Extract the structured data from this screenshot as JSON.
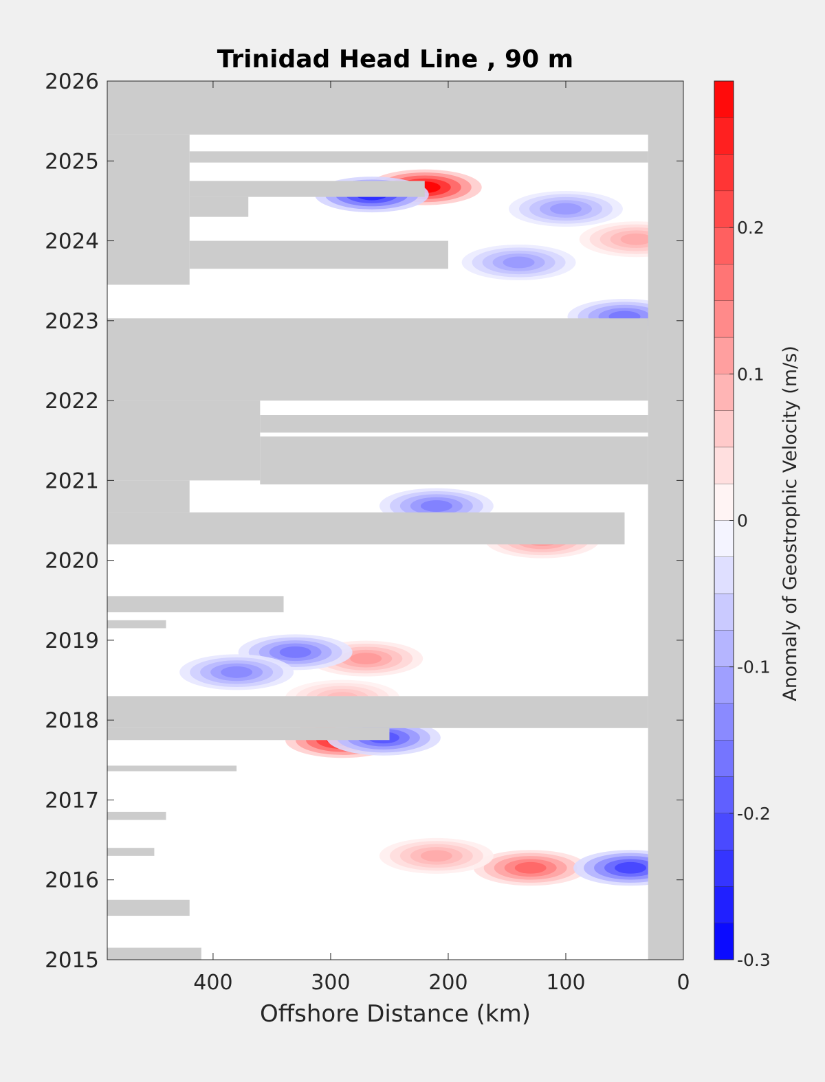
{
  "chart_data": {
    "type": "heatmap",
    "title": "Trinidad Head Line , 90 m",
    "xlabel": "Offshore Distance (km)",
    "ylabel": "",
    "xlim": [
      490,
      0
    ],
    "ylim": [
      2015,
      2026
    ],
    "x_reversed": true,
    "x_ticks": [
      400,
      300,
      200,
      100,
      0
    ],
    "y_ticks": [
      2015,
      2016,
      2017,
      2018,
      2019,
      2020,
      2021,
      2022,
      2023,
      2024,
      2025,
      2026
    ],
    "grid": false,
    "missing_color": "#cccccc",
    "colorbar": {
      "label": "Anomaly of Geostrophic Velocity (m/s)",
      "limits": [
        -0.3,
        0.3
      ],
      "levels": 24,
      "low_color": "#0000ff",
      "mid_color": "#ffffff",
      "high_color": "#ff0000",
      "ticks": [
        -0.3,
        -0.2,
        -0.1,
        0,
        0.1,
        0.2
      ],
      "tick_labels": [
        "-0.3",
        "-0.2",
        "-0.1",
        "0",
        "0.1",
        "0.2"
      ]
    },
    "missing_data": [
      {
        "x": [
          490,
          0
        ],
        "y": [
          2025.33,
          2026
        ]
      },
      {
        "x": [
          30,
          0
        ],
        "y": [
          2015,
          2026
        ]
      },
      {
        "x": [
          490,
          420
        ],
        "y": [
          2023.45,
          2025.33
        ]
      },
      {
        "x": [
          420,
          30
        ],
        "y": [
          2024.98,
          2025.12
        ]
      },
      {
        "x": [
          420,
          220
        ],
        "y": [
          2024.55,
          2024.75
        ]
      },
      {
        "x": [
          420,
          370
        ],
        "y": [
          2024.3,
          2024.55
        ]
      },
      {
        "x": [
          420,
          200
        ],
        "y": [
          2023.65,
          2024.0
        ]
      },
      {
        "x": [
          490,
          30
        ],
        "y": [
          2022.0,
          2023.03
        ]
      },
      {
        "x": [
          490,
          360
        ],
        "y": [
          2021.0,
          2022.0
        ]
      },
      {
        "x": [
          360,
          30
        ],
        "y": [
          2021.6,
          2021.82
        ]
      },
      {
        "x": [
          360,
          30
        ],
        "y": [
          2020.95,
          2021.55
        ]
      },
      {
        "x": [
          490,
          420
        ],
        "y": [
          2020.6,
          2021.0
        ]
      },
      {
        "x": [
          490,
          50
        ],
        "y": [
          2020.2,
          2020.6
        ]
      },
      {
        "x": [
          490,
          340
        ],
        "y": [
          2019.35,
          2019.55
        ]
      },
      {
        "x": [
          490,
          440
        ],
        "y": [
          2019.15,
          2019.25
        ]
      },
      {
        "x": [
          490,
          30
        ],
        "y": [
          2017.9,
          2018.3
        ]
      },
      {
        "x": [
          490,
          250
        ],
        "y": [
          2017.75,
          2017.9
        ]
      },
      {
        "x": [
          490,
          380
        ],
        "y": [
          2017.36,
          2017.43
        ]
      },
      {
        "x": [
          490,
          440
        ],
        "y": [
          2016.75,
          2016.85
        ]
      },
      {
        "x": [
          490,
          450
        ],
        "y": [
          2016.3,
          2016.4
        ]
      },
      {
        "x": [
          490,
          420
        ],
        "y": [
          2015.55,
          2015.75
        ]
      },
      {
        "x": [
          490,
          410
        ],
        "y": [
          2015.0,
          2015.15
        ]
      }
    ],
    "anomaly_features": [
      {
        "x": 220,
        "y": 2024.67,
        "value": 0.3
      },
      {
        "x": 265,
        "y": 2024.58,
        "value": -0.25
      },
      {
        "x": 290,
        "y": 2017.75,
        "value": 0.28
      },
      {
        "x": 255,
        "y": 2017.78,
        "value": -0.2
      },
      {
        "x": 130,
        "y": 2016.15,
        "value": 0.18
      },
      {
        "x": 45,
        "y": 2016.15,
        "value": -0.22
      },
      {
        "x": 270,
        "y": 2018.77,
        "value": 0.12
      },
      {
        "x": 330,
        "y": 2018.85,
        "value": -0.16
      },
      {
        "x": 380,
        "y": 2018.6,
        "value": -0.14
      },
      {
        "x": 210,
        "y": 2020.68,
        "value": -0.15
      },
      {
        "x": 50,
        "y": 2023.05,
        "value": -0.16
      },
      {
        "x": 140,
        "y": 2023.73,
        "value": -0.12
      },
      {
        "x": 100,
        "y": 2024.4,
        "value": -0.12
      },
      {
        "x": 210,
        "y": 2016.3,
        "value": 0.1
      },
      {
        "x": 120,
        "y": 2020.25,
        "value": 0.12
      },
      {
        "x": 290,
        "y": 2018.28,
        "value": 0.08
      },
      {
        "x": 40,
        "y": 2024.02,
        "value": 0.1
      }
    ]
  }
}
